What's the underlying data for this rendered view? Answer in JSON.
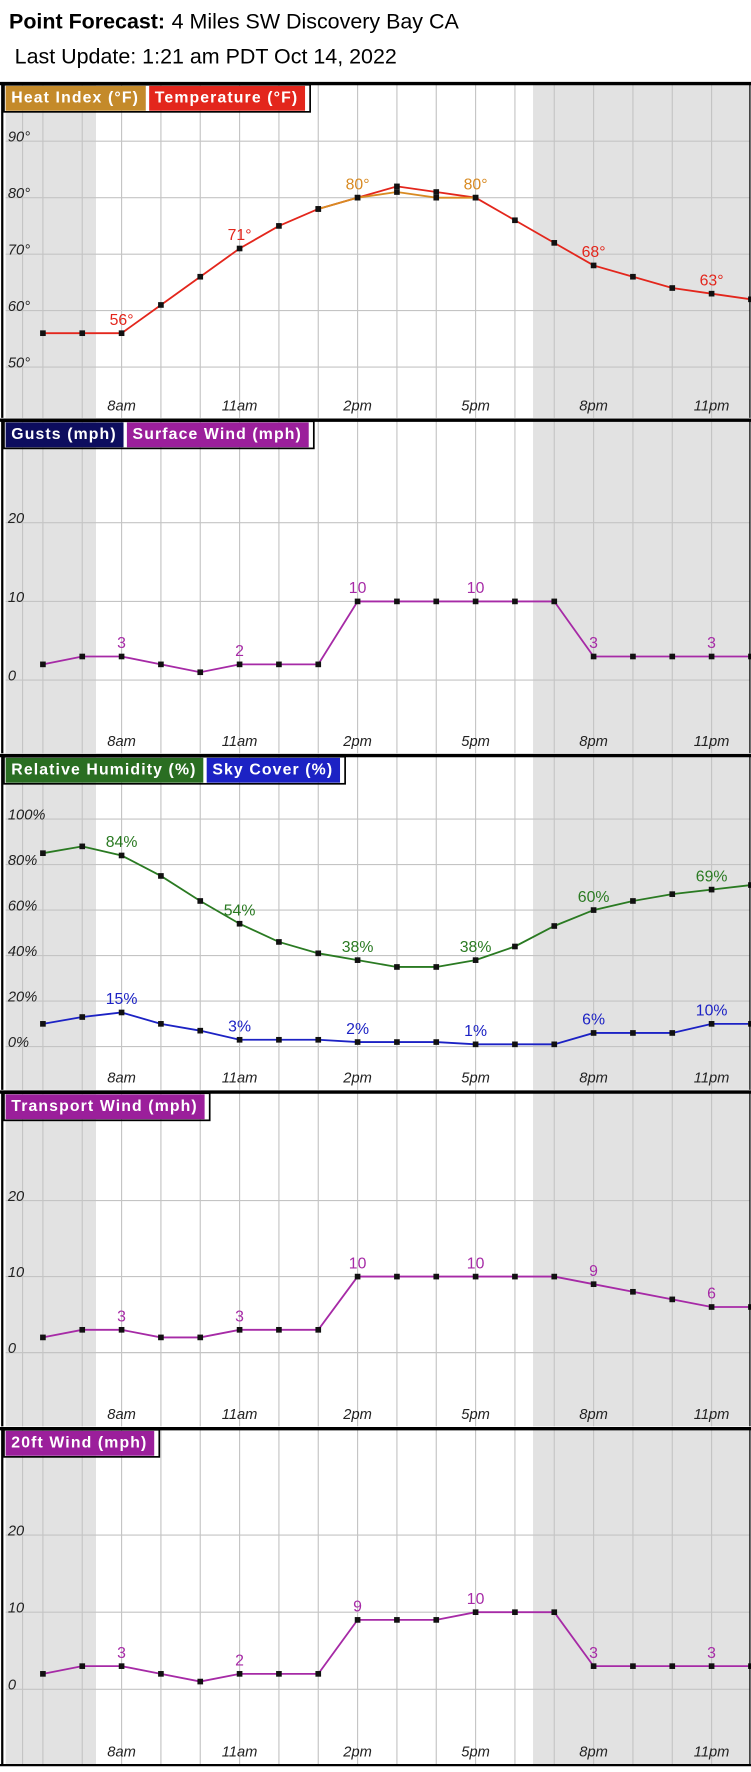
{
  "header": {
    "title_label": "Point Forecast:",
    "location": "4 Miles SW Discovery Bay CA",
    "last_update": "Last Update: 1:21 am PDT Oct 14, 2022"
  },
  "chart_data": [
    {
      "type": "line",
      "categories": [
        null,
        null,
        "8am",
        null,
        null,
        "11am",
        null,
        null,
        "2pm",
        null,
        null,
        "5pm",
        null,
        null,
        "8pm",
        null,
        null,
        "11pm",
        null
      ],
      "ylim": [
        41,
        95
      ],
      "yticks": [
        {
          "value": 50,
          "label": "50°"
        },
        {
          "value": 60,
          "label": "60°"
        },
        {
          "value": 70,
          "label": "70°"
        },
        {
          "value": 80,
          "label": "80°"
        },
        {
          "value": 90,
          "label": "90°"
        }
      ],
      "grid": true,
      "series": [
        {
          "name": "Heat Index (°F)",
          "color": "#c48a2a",
          "line_color": "#d88a22",
          "values": [
            null,
            null,
            null,
            null,
            null,
            null,
            null,
            78,
            80,
            81,
            80,
            80,
            null,
            null,
            null,
            null,
            null,
            null,
            null
          ],
          "value_labels": [
            null,
            null,
            null,
            null,
            null,
            null,
            null,
            null,
            "80°",
            null,
            null,
            "80°",
            null,
            null,
            null,
            null,
            null,
            null,
            null
          ]
        },
        {
          "name": "Temperature (°F)",
          "color": "#e3261c",
          "line_color": "#e3261c",
          "values": [
            56,
            56,
            56,
            61,
            66,
            71,
            75,
            78,
            80,
            82,
            81,
            80,
            76,
            72,
            68,
            66,
            64,
            63,
            62
          ],
          "value_labels": [
            null,
            null,
            "56°",
            null,
            null,
            "71°",
            null,
            null,
            null,
            null,
            null,
            null,
            null,
            null,
            "68°",
            null,
            null,
            "63°",
            null
          ]
        }
      ]
    },
    {
      "type": "line",
      "categories": [
        null,
        null,
        "8am",
        null,
        null,
        "11am",
        null,
        null,
        "2pm",
        null,
        null,
        "5pm",
        null,
        null,
        "8pm",
        null,
        null,
        "11pm",
        null
      ],
      "ylim": [
        -9.3,
        29.3
      ],
      "yticks": [
        0,
        10,
        20
      ],
      "grid": true,
      "series": [
        {
          "name": "Gusts (mph)",
          "color": "#0d0d5e",
          "line_color": "#0d0d5e",
          "values": [
            null,
            null,
            null,
            null,
            null,
            null,
            null,
            null,
            null,
            null,
            null,
            null,
            null,
            null,
            null,
            null,
            null,
            null,
            null
          ]
        },
        {
          "name": "Surface Wind (mph)",
          "color": "#9b1f9b",
          "line_color": "#a62aa6",
          "values": [
            2,
            3,
            3,
            2,
            1,
            2,
            2,
            2,
            10,
            10,
            10,
            10,
            10,
            10,
            3,
            3,
            3,
            3,
            3
          ],
          "value_labels": [
            null,
            null,
            "3",
            null,
            null,
            "2",
            null,
            null,
            "10",
            null,
            null,
            "10",
            null,
            null,
            "3",
            null,
            null,
            "3",
            null
          ]
        }
      ]
    },
    {
      "type": "line",
      "categories": [
        null,
        null,
        "8am",
        null,
        null,
        "11am",
        null,
        null,
        "2pm",
        null,
        null,
        "5pm",
        null,
        null,
        "8pm",
        null,
        null,
        "11pm",
        null
      ],
      "ylim": [
        -19,
        115
      ],
      "yticks": [
        {
          "value": 0,
          "label": "0%"
        },
        {
          "value": 20,
          "label": "20%"
        },
        {
          "value": 40,
          "label": "40%"
        },
        {
          "value": 60,
          "label": "60%"
        },
        {
          "value": 80,
          "label": "80%"
        },
        {
          "value": 100,
          "label": "100%"
        }
      ],
      "grid": true,
      "series": [
        {
          "name": "Relative Humidity (%)",
          "color": "#2a6e22",
          "line_color": "#2a7a22",
          "values": [
            85,
            88,
            84,
            75,
            64,
            54,
            46,
            41,
            38,
            35,
            35,
            38,
            44,
            53,
            60,
            64,
            67,
            69,
            71
          ],
          "value_labels": [
            null,
            null,
            "84%",
            null,
            null,
            "54%",
            null,
            null,
            "38%",
            null,
            null,
            "38%",
            null,
            null,
            "60%",
            null,
            null,
            "69%",
            null
          ]
        },
        {
          "name": "Sky Cover (%)",
          "color": "#1c22c4",
          "line_color": "#1c22c4",
          "values": [
            10,
            13,
            15,
            10,
            7,
            3,
            3,
            3,
            2,
            2,
            2,
            1,
            1,
            1,
            6,
            6,
            6,
            10,
            10
          ],
          "value_labels": [
            null,
            null,
            "15%",
            null,
            null,
            "3%",
            null,
            null,
            "2%",
            null,
            null,
            "1%",
            null,
            null,
            "6%",
            null,
            null,
            "10%",
            null
          ]
        }
      ]
    },
    {
      "type": "line",
      "categories": [
        null,
        null,
        "8am",
        null,
        null,
        "11am",
        null,
        null,
        "2pm",
        null,
        null,
        "5pm",
        null,
        null,
        "8pm",
        null,
        null,
        "11pm",
        null
      ],
      "ylim": [
        -9.7,
        30.4
      ],
      "yticks": [
        0,
        10,
        20
      ],
      "grid": true,
      "series": [
        {
          "name": "Transport Wind (mph)",
          "color": "#9b1f9b",
          "line_color": "#a62aa6",
          "values": [
            2,
            3,
            3,
            2,
            2,
            3,
            3,
            3,
            10,
            10,
            10,
            10,
            10,
            10,
            9,
            8,
            7,
            6,
            6
          ],
          "value_labels": [
            null,
            null,
            "3",
            null,
            null,
            "3",
            null,
            null,
            "10",
            null,
            null,
            "10",
            null,
            null,
            "9",
            null,
            null,
            "6",
            null
          ]
        }
      ]
    },
    {
      "type": "line",
      "categories": [
        null,
        null,
        "8am",
        null,
        null,
        "11am",
        null,
        null,
        "2pm",
        null,
        null,
        "5pm",
        null,
        null,
        "8pm",
        null,
        null,
        "11pm",
        null
      ],
      "ylim": [
        -9.7,
        30
      ],
      "yticks": [
        0,
        10,
        20
      ],
      "grid": true,
      "series": [
        {
          "name": "20ft Wind (mph)",
          "color": "#9b1f9b",
          "line_color": "#a62aa6",
          "values": [
            2,
            3,
            3,
            2,
            1,
            2,
            2,
            2,
            9,
            9,
            9,
            10,
            10,
            10,
            3,
            3,
            3,
            3,
            3
          ],
          "value_labels": [
            null,
            null,
            "3",
            null,
            null,
            "2",
            null,
            null,
            "9",
            null,
            null,
            "10",
            null,
            null,
            "3",
            null,
            null,
            "3",
            null
          ]
        }
      ]
    }
  ]
}
